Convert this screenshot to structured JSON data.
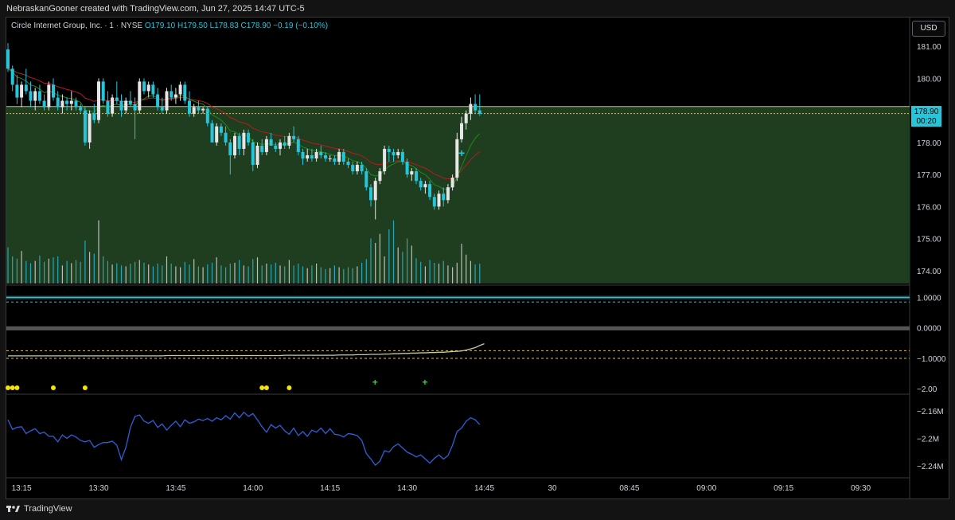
{
  "header": {
    "title": "NebraskanGooner created with TradingView.com, Jun 27, 2025 14:47 UTC-5"
  },
  "legend": {
    "symbol": "Circle Internet Group, Inc. · 1 · NYSE",
    "open": "O179.10",
    "high": "H179.50",
    "low": "L178.83",
    "close": "C178.90",
    "change": "−0.19 (−0.10%)"
  },
  "currency_button": "USD",
  "price_tag": {
    "price": "178.90",
    "countdown": "00:20"
  },
  "footer": {
    "brand": "TradingView"
  },
  "colors": {
    "up": "#e6e6e6",
    "down": "#26c6da",
    "ema_fast": "#1b8a1b",
    "ema_slow": "#b71c1c",
    "zone": "#1f3d1f",
    "line": "#c8c8b0",
    "cvd": "#2f5fd8",
    "dot": "#f5e400",
    "cross": "#22dd22"
  },
  "chart_data": [
    {
      "type": "candlestick",
      "title": "Circle Internet Group, Inc. · 1 · NYSE",
      "x_ticks": [
        "13:15",
        "13:30",
        "13:45",
        "14:00",
        "14:15",
        "14:30",
        "14:45",
        "30",
        "08:45",
        "09:00",
        "09:15",
        "09:30"
      ],
      "y_ticks": [
        "181.00",
        "180.00",
        "179.00",
        "178.00",
        "177.00",
        "176.00",
        "175.00",
        "174.00"
      ],
      "ylim": [
        173.6,
        181.4
      ],
      "ohlc": [
        [
          180.9,
          181.1,
          180.2,
          180.3
        ],
        [
          180.3,
          180.4,
          179.6,
          179.8
        ],
        [
          179.8,
          180.1,
          179.2,
          179.4
        ],
        [
          179.4,
          179.9,
          179.1,
          179.8
        ],
        [
          179.8,
          180.3,
          179.5,
          179.6
        ],
        [
          179.6,
          179.9,
          179.1,
          179.3
        ],
        [
          179.3,
          179.7,
          179.0,
          179.6
        ],
        [
          179.6,
          179.8,
          179.2,
          179.3
        ],
        [
          179.3,
          179.5,
          179.0,
          179.1
        ],
        [
          179.1,
          179.9,
          179.0,
          179.8
        ],
        [
          179.8,
          180.0,
          179.3,
          179.4
        ],
        [
          179.4,
          179.6,
          179.0,
          179.1
        ],
        [
          179.1,
          179.5,
          178.9,
          179.3
        ],
        [
          179.3,
          179.4,
          179.0,
          179.2
        ],
        [
          179.2,
          179.6,
          179.0,
          179.3
        ],
        [
          179.3,
          179.4,
          179.0,
          179.1
        ],
        [
          179.1,
          179.2,
          178.9,
          179.0
        ],
        [
          179.0,
          179.1,
          177.9,
          178.0
        ],
        [
          178.0,
          179.0,
          177.8,
          178.9
        ],
        [
          178.9,
          179.2,
          178.6,
          178.7
        ],
        [
          178.7,
          180.0,
          178.6,
          179.9
        ],
        [
          179.9,
          180.0,
          179.2,
          179.3
        ],
        [
          179.3,
          179.6,
          178.8,
          178.9
        ],
        [
          178.9,
          179.5,
          178.8,
          179.4
        ],
        [
          179.4,
          179.9,
          179.2,
          179.3
        ],
        [
          179.3,
          179.5,
          178.8,
          179.0
        ],
        [
          179.0,
          179.4,
          178.9,
          179.3
        ],
        [
          179.3,
          179.6,
          179.1,
          179.2
        ],
        [
          179.2,
          179.4,
          178.1,
          179.0
        ],
        [
          179.0,
          180.0,
          178.9,
          179.9
        ],
        [
          179.9,
          180.0,
          179.5,
          179.6
        ],
        [
          179.6,
          179.9,
          179.4,
          179.8
        ],
        [
          179.8,
          179.9,
          179.4,
          179.5
        ],
        [
          179.5,
          179.7,
          179.0,
          179.1
        ],
        [
          179.1,
          179.4,
          178.9,
          179.0
        ],
        [
          179.0,
          179.7,
          178.9,
          179.6
        ],
        [
          179.6,
          179.8,
          179.3,
          179.4
        ],
        [
          179.4,
          179.7,
          179.2,
          179.5
        ],
        [
          179.5,
          179.9,
          179.3,
          179.8
        ],
        [
          179.8,
          179.9,
          179.2,
          179.3
        ],
        [
          179.3,
          179.6,
          178.8,
          178.9
        ],
        [
          178.9,
          179.2,
          178.8,
          179.1
        ],
        [
          179.1,
          179.3,
          178.9,
          179.0
        ],
        [
          179.0,
          179.1,
          178.9,
          179.05
        ],
        [
          179.05,
          179.1,
          178.5,
          178.6
        ],
        [
          178.6,
          178.7,
          178.0,
          178.0
        ],
        [
          178.0,
          178.6,
          177.9,
          178.5
        ],
        [
          178.5,
          178.6,
          178.2,
          178.3
        ],
        [
          178.3,
          178.5,
          177.9,
          178.0
        ],
        [
          178.0,
          178.1,
          177.0,
          177.6
        ],
        [
          177.6,
          178.3,
          177.5,
          178.2
        ],
        [
          178.2,
          178.3,
          177.6,
          177.8
        ],
        [
          177.8,
          178.4,
          177.6,
          178.3
        ],
        [
          178.3,
          178.4,
          177.9,
          178.0
        ],
        [
          178.0,
          178.1,
          177.1,
          177.3
        ],
        [
          177.3,
          178.0,
          177.2,
          177.9
        ],
        [
          177.9,
          178.1,
          177.6,
          177.7
        ],
        [
          177.7,
          178.2,
          177.6,
          178.1
        ],
        [
          178.1,
          178.3,
          177.9,
          177.9
        ],
        [
          177.9,
          178.0,
          177.7,
          177.8
        ],
        [
          177.8,
          178.1,
          177.6,
          178.0
        ],
        [
          178.0,
          178.2,
          177.8,
          177.9
        ],
        [
          177.9,
          178.3,
          177.8,
          178.2
        ],
        [
          178.2,
          178.5,
          178.0,
          178.1
        ],
        [
          178.1,
          178.2,
          177.6,
          177.7
        ],
        [
          177.7,
          177.8,
          177.3,
          177.5
        ],
        [
          177.5,
          177.8,
          177.4,
          177.6
        ],
        [
          177.6,
          177.8,
          177.4,
          177.5
        ],
        [
          177.5,
          177.8,
          177.4,
          177.7
        ],
        [
          177.7,
          177.9,
          177.5,
          177.6
        ],
        [
          177.6,
          177.7,
          177.4,
          177.5
        ],
        [
          177.5,
          177.6,
          177.4,
          177.5
        ],
        [
          177.5,
          177.6,
          177.3,
          177.4
        ],
        [
          177.4,
          177.8,
          177.3,
          177.7
        ],
        [
          177.7,
          177.8,
          177.3,
          177.4
        ],
        [
          177.4,
          177.5,
          177.2,
          177.3
        ],
        [
          177.3,
          177.4,
          177.0,
          177.1
        ],
        [
          177.1,
          177.4,
          177.0,
          177.3
        ],
        [
          177.3,
          177.4,
          177.0,
          177.1
        ],
        [
          177.1,
          177.2,
          176.5,
          176.6
        ],
        [
          176.6,
          176.7,
          176.0,
          176.2
        ],
        [
          176.2,
          176.9,
          175.6,
          176.8
        ],
        [
          176.8,
          177.2,
          176.7,
          177.1
        ],
        [
          177.1,
          177.9,
          177.0,
          177.8
        ],
        [
          177.8,
          177.9,
          177.4,
          177.7
        ],
        [
          177.7,
          177.8,
          177.4,
          177.6
        ],
        [
          177.6,
          177.8,
          177.5,
          177.7
        ],
        [
          177.7,
          177.8,
          177.3,
          177.4
        ],
        [
          177.4,
          177.5,
          176.9,
          177.0
        ],
        [
          177.0,
          177.2,
          176.8,
          177.1
        ],
        [
          177.1,
          177.2,
          176.7,
          176.8
        ],
        [
          176.8,
          176.9,
          176.5,
          176.6
        ],
        [
          176.6,
          176.8,
          176.4,
          176.7
        ],
        [
          176.7,
          176.8,
          176.2,
          176.3
        ],
        [
          176.3,
          176.4,
          175.9,
          176.0
        ],
        [
          176.0,
          176.5,
          175.9,
          176.4
        ],
        [
          176.4,
          176.6,
          176.0,
          176.2
        ],
        [
          176.2,
          176.7,
          176.1,
          176.6
        ],
        [
          176.6,
          177.0,
          176.5,
          176.9
        ],
        [
          176.9,
          178.3,
          176.8,
          178.1
        ],
        [
          178.1,
          178.8,
          178.0,
          178.6
        ],
        [
          178.6,
          179.0,
          178.4,
          178.9
        ],
        [
          178.9,
          179.4,
          178.7,
          179.2
        ],
        [
          179.2,
          179.5,
          178.9,
          179.0
        ],
        [
          179.0,
          179.5,
          178.83,
          178.9
        ]
      ],
      "volume": [
        80,
        60,
        55,
        72,
        50,
        45,
        50,
        62,
        48,
        55,
        58,
        60,
        40,
        50,
        45,
        52,
        48,
        95,
        70,
        66,
        140,
        60,
        50,
        42,
        45,
        40,
        38,
        44,
        48,
        52,
        46,
        42,
        38,
        44,
        40,
        60,
        44,
        38,
        36,
        48,
        42,
        54,
        38,
        36,
        42,
        46,
        58,
        40,
        36,
        44,
        46,
        52,
        40,
        38,
        54,
        58,
        40,
        44,
        42,
        46,
        40,
        38,
        52,
        40,
        44,
        38,
        34,
        40,
        44,
        36,
        32,
        34,
        40,
        36,
        32,
        36,
        34,
        38,
        46,
        54,
        100,
        90,
        110,
        60,
        120,
        140,
        80,
        70,
        100,
        84,
        56,
        48,
        38,
        52,
        46,
        44,
        50,
        40,
        36,
        46,
        88,
        64,
        50,
        42,
        44
      ],
      "volume_range": [
        0,
        150
      ]
    },
    {
      "type": "line",
      "title": "",
      "y_ticks": [
        "1.0000",
        "0.0000",
        "−1.0000",
        "−2.00"
      ],
      "ylim": [
        -2.1,
        1.3
      ],
      "values": [
        -0.92,
        -0.92,
        -0.92,
        -0.92,
        -0.92,
        -0.92,
        -0.92,
        -0.92,
        -0.92,
        -0.92,
        -0.92,
        -0.92,
        -0.92,
        -0.92,
        -0.92,
        -0.92,
        -0.92,
        -0.92,
        -0.92,
        -0.92,
        -0.92,
        -0.92,
        -0.92,
        -0.92,
        -0.92,
        -0.92,
        -0.92,
        -0.92,
        -0.92,
        -0.92,
        -0.92,
        -0.92,
        -0.92,
        -0.92,
        -0.92,
        -0.91,
        -0.91,
        -0.91,
        -0.91,
        -0.91,
        -0.91,
        -0.91,
        -0.91,
        -0.91,
        -0.91,
        -0.91,
        -0.91,
        -0.91,
        -0.91,
        -0.91,
        -0.91,
        -0.91,
        -0.91,
        -0.91,
        -0.91,
        -0.91,
        -0.91,
        -0.91,
        -0.91,
        -0.91,
        -0.91,
        -0.9,
        -0.9,
        -0.9,
        -0.9,
        -0.9,
        -0.9,
        -0.9,
        -0.9,
        -0.9,
        -0.9,
        -0.9,
        -0.9,
        -0.89,
        -0.89,
        -0.89,
        -0.89,
        -0.88,
        -0.88,
        -0.88,
        -0.87,
        -0.87,
        -0.87,
        -0.86,
        -0.86,
        -0.85,
        -0.85,
        -0.84,
        -0.84,
        -0.83,
        -0.83,
        -0.82,
        -0.82,
        -0.81,
        -0.81,
        -0.8,
        -0.8,
        -0.79,
        -0.78,
        -0.77,
        -0.76,
        -0.73,
        -0.69,
        -0.65,
        -0.58,
        -0.52
      ],
      "dots_at": [
        0,
        1,
        2,
        10,
        17,
        56,
        57,
        62
      ],
      "crosses_at": [
        81,
        92
      ]
    },
    {
      "type": "line",
      "title": "",
      "y_ticks": [
        "−2.16M",
        "−2.2M",
        "−2.24M"
      ],
      "ylim": [
        -2.255,
        -2.145
      ],
      "values": [
        -2.173,
        -2.187,
        -2.184,
        -2.183,
        -2.193,
        -2.189,
        -2.186,
        -2.193,
        -2.191,
        -2.197,
        -2.197,
        -2.205,
        -2.195,
        -2.2,
        -2.195,
        -2.198,
        -2.203,
        -2.205,
        -2.203,
        -2.213,
        -2.209,
        -2.206,
        -2.206,
        -2.204,
        -2.21,
        -2.231,
        -2.213,
        -2.184,
        -2.168,
        -2.166,
        -2.175,
        -2.178,
        -2.174,
        -2.184,
        -2.179,
        -2.188,
        -2.181,
        -2.175,
        -2.183,
        -2.173,
        -2.178,
        -2.176,
        -2.172,
        -2.174,
        -2.171,
        -2.175,
        -2.17,
        -2.173,
        -2.167,
        -2.172,
        -2.163,
        -2.17,
        -2.162,
        -2.168,
        -2.164,
        -2.173,
        -2.183,
        -2.191,
        -2.18,
        -2.185,
        -2.181,
        -2.189,
        -2.194,
        -2.185,
        -2.196,
        -2.19,
        -2.197,
        -2.188,
        -2.191,
        -2.185,
        -2.193,
        -2.186,
        -2.194,
        -2.195,
        -2.198,
        -2.193,
        -2.194,
        -2.196,
        -2.203,
        -2.222,
        -2.23,
        -2.239,
        -2.233,
        -2.218,
        -2.22,
        -2.212,
        -2.208,
        -2.214,
        -2.22,
        -2.223,
        -2.227,
        -2.224,
        -2.23,
        -2.236,
        -2.229,
        -2.224,
        -2.23,
        -2.225,
        -2.21,
        -2.19,
        -2.185,
        -2.175,
        -2.17,
        -2.173,
        -2.18
      ]
    }
  ]
}
